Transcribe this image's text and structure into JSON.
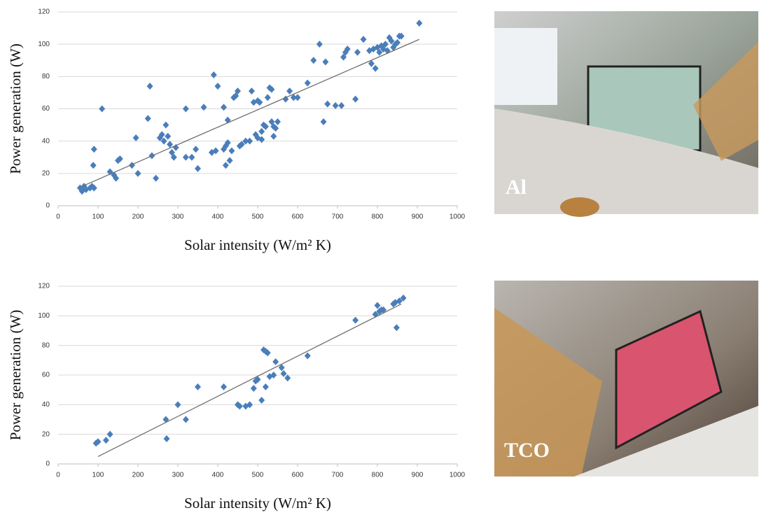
{
  "chart_data": [
    {
      "type": "scatter",
      "x_label": "Solar intensity (W/m² K)",
      "y_label": "Power generation (W)",
      "color": "#4a7ebb",
      "grid": true,
      "xlim": [
        0,
        1000
      ],
      "xticks": [
        0,
        100,
        200,
        300,
        400,
        500,
        600,
        700,
        800,
        900,
        1000
      ],
      "ylim": [
        0,
        120
      ],
      "yticks": [
        0,
        20,
        40,
        60,
        80,
        100,
        120
      ],
      "x": [
        55,
        60,
        65,
        70,
        80,
        85,
        90,
        88,
        90,
        110,
        130,
        140,
        145,
        150,
        155,
        185,
        195,
        200,
        225,
        230,
        235,
        245,
        255,
        260,
        265,
        270,
        275,
        280,
        285,
        290,
        295,
        320,
        320,
        335,
        345,
        350,
        365,
        385,
        390,
        395,
        400,
        415,
        415,
        420,
        420,
        425,
        425,
        430,
        435,
        440,
        445,
        450,
        455,
        460,
        470,
        480,
        485,
        490,
        495,
        500,
        500,
        505,
        510,
        510,
        515,
        520,
        525,
        530,
        535,
        535,
        540,
        540,
        545,
        550,
        570,
        580,
        590,
        600,
        625,
        640,
        655,
        665,
        670,
        675,
        695,
        710,
        715,
        720,
        725,
        745,
        750,
        765,
        780,
        785,
        790,
        795,
        800,
        805,
        810,
        815,
        820,
        825,
        830,
        835,
        840,
        845,
        850,
        855,
        860,
        905
      ],
      "y": [
        11,
        9,
        12,
        10,
        11,
        12,
        11,
        25,
        35,
        60,
        21,
        19,
        17,
        28,
        29,
        25,
        42,
        20,
        54,
        74,
        31,
        17,
        42,
        44,
        40,
        50,
        43,
        38,
        33,
        30,
        36,
        60,
        30,
        30,
        35,
        23,
        61,
        33,
        81,
        34,
        74,
        61,
        35,
        25,
        37,
        39,
        53,
        28,
        34,
        67,
        68,
        71,
        37,
        38,
        40,
        40,
        71,
        64,
        44,
        42,
        65,
        64,
        46,
        41,
        50,
        49,
        67,
        73,
        72,
        52,
        43,
        49,
        48,
        52,
        66,
        71,
        67,
        67,
        76,
        90,
        100,
        52,
        89,
        63,
        62,
        62,
        92,
        95,
        97,
        66,
        95,
        103,
        96,
        88,
        97,
        85,
        98,
        95,
        99,
        97,
        100,
        96,
        104,
        102,
        98,
        100,
        101,
        105,
        105,
        113
      ],
      "trendline": {
        "x": [
          60,
          905
        ],
        "y": [
          12,
          103
        ]
      }
    },
    {
      "type": "scatter",
      "x_label": "Solar intensity (W/m² K)",
      "y_label": "Power generation (W)",
      "color": "#4a7ebb",
      "grid": true,
      "xlim": [
        0,
        1000
      ],
      "xticks": [
        0,
        100,
        200,
        300,
        400,
        500,
        600,
        700,
        800,
        900,
        1000
      ],
      "ylim": [
        0,
        120
      ],
      "yticks": [
        0,
        20,
        40,
        60,
        80,
        100,
        120
      ],
      "x": [
        95,
        100,
        120,
        130,
        270,
        272,
        300,
        320,
        350,
        415,
        450,
        455,
        470,
        480,
        490,
        495,
        500,
        510,
        515,
        520,
        520,
        525,
        530,
        540,
        545,
        560,
        565,
        575,
        625,
        745,
        795,
        800,
        805,
        810,
        815,
        840,
        845,
        848,
        855,
        865
      ],
      "y": [
        14,
        15,
        16,
        20,
        30,
        17,
        40,
        30,
        52,
        52,
        40,
        39,
        39,
        40,
        51,
        56,
        57,
        43,
        77,
        76,
        52,
        75,
        59,
        60,
        69,
        65,
        61,
        58,
        73,
        97,
        101,
        107,
        103,
        104,
        104,
        108,
        109,
        92,
        110,
        112
      ],
      "trendline": {
        "x": [
          100,
          860
        ],
        "y": [
          5,
          108
        ]
      }
    }
  ],
  "photos": [
    {
      "label": "Al"
    },
    {
      "label": "TCO"
    }
  ]
}
